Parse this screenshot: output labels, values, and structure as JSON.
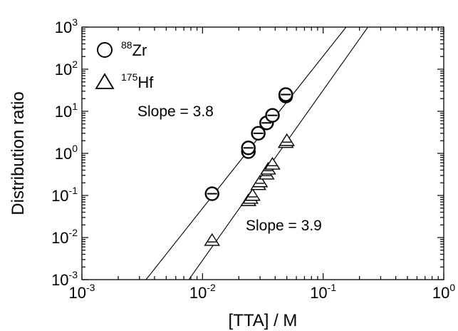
{
  "chart_data": {
    "type": "scatter",
    "xlabel": "[TTA] / M",
    "ylabel": "Distribution ratio",
    "xscale": "log",
    "yscale": "log",
    "xlim": [
      0.001,
      1
    ],
    "ylim": [
      0.001,
      1000
    ],
    "x_ticks": [
      {
        "base": "10",
        "exp": "-3"
      },
      {
        "base": "10",
        "exp": "-2"
      },
      {
        "base": "10",
        "exp": "-1"
      },
      {
        "base": "10",
        "exp": "0"
      }
    ],
    "y_ticks": [
      {
        "base": "10",
        "exp": "-3"
      },
      {
        "base": "10",
        "exp": "-2"
      },
      {
        "base": "10",
        "exp": "-1"
      },
      {
        "base": "10",
        "exp": "0"
      },
      {
        "base": "10",
        "exp": "1"
      },
      {
        "base": "10",
        "exp": "2"
      },
      {
        "base": "10",
        "exp": "3"
      }
    ],
    "legend_position": "top-left",
    "series": [
      {
        "name_sup": "88",
        "name_main": "Zr",
        "marker": "circle",
        "x": [
          0.012,
          0.024,
          0.024,
          0.029,
          0.034,
          0.038,
          0.049,
          0.049
        ],
        "y": [
          0.11,
          1.1,
          1.35,
          3.0,
          5.3,
          8.0,
          23,
          25
        ],
        "fit": {
          "slope": 3.8,
          "x": [
            0.0034,
            0.155
          ],
          "y": [
            0.001,
            1000
          ]
        },
        "annotation": "Slope = 3.8"
      },
      {
        "name_sup": "175",
        "name_main": "Hf",
        "marker": "triangle",
        "x": [
          0.012,
          0.024,
          0.025,
          0.026,
          0.029,
          0.03,
          0.034,
          0.035,
          0.038,
          0.049,
          0.05
        ],
        "y": [
          0.0085,
          0.075,
          0.085,
          0.1,
          0.18,
          0.21,
          0.32,
          0.42,
          0.55,
          1.8,
          2.0
        ],
        "fit": {
          "slope": 3.9,
          "x": [
            0.0077,
            0.235
          ],
          "y": [
            0.001,
            1000
          ]
        },
        "annotation": "Slope = 3.9"
      }
    ]
  }
}
